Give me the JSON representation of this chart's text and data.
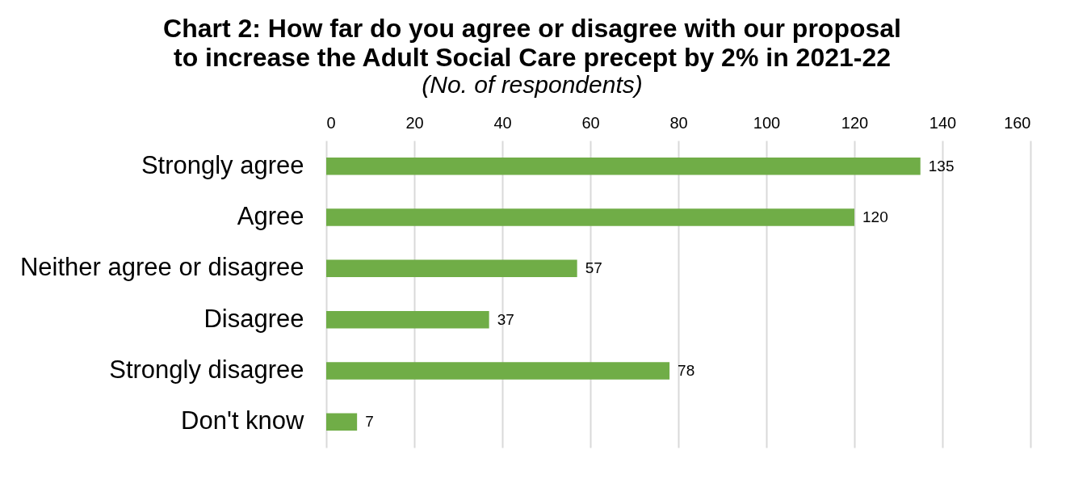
{
  "chart_data": {
    "type": "bar",
    "orientation": "horizontal",
    "title": "Chart 2: How far do you agree or disagree with our proposal to increase the Adult Social Care precept by 2% in 2021-22",
    "subtitle": "(No. of respondents)",
    "categories": [
      "Strongly agree",
      "Agree",
      "Neither agree or disagree",
      "Disagree",
      "Strongly disagree",
      "Don't know"
    ],
    "values": [
      135,
      120,
      57,
      37,
      78,
      7
    ],
    "color": "#70ad47",
    "xlim": [
      0,
      160
    ],
    "xticks": [
      0,
      20,
      40,
      60,
      80,
      100,
      120,
      140,
      160
    ],
    "grid": "x",
    "data_labels": true
  }
}
